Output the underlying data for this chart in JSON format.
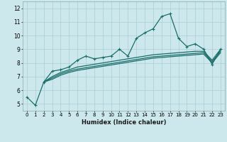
{
  "xlabel": "Humidex (Indice chaleur)",
  "bg_color": "#cde8ec",
  "grid_color": "#aacdd4",
  "line_color": "#1a6e6a",
  "xlim": [
    -0.5,
    23.5
  ],
  "ylim": [
    4.5,
    12.5
  ],
  "yticks": [
    5,
    6,
    7,
    8,
    9,
    10,
    11,
    12
  ],
  "xticks": [
    0,
    1,
    2,
    3,
    4,
    5,
    6,
    7,
    8,
    9,
    10,
    11,
    12,
    13,
    14,
    15,
    16,
    17,
    18,
    19,
    20,
    21,
    22,
    23
  ],
  "series1_x": [
    0,
    1,
    2,
    3,
    4,
    5,
    6,
    7,
    8,
    9,
    10,
    11,
    12,
    13,
    14,
    15,
    16,
    17,
    18,
    19,
    20,
    21,
    22,
    23
  ],
  "series1_y": [
    5.5,
    4.9,
    6.6,
    7.4,
    7.5,
    7.7,
    8.2,
    8.5,
    8.3,
    8.4,
    8.5,
    9.0,
    8.5,
    9.8,
    10.2,
    10.5,
    11.4,
    11.6,
    9.8,
    9.2,
    9.4,
    9.0,
    7.9,
    9.0
  ],
  "series2_x": [
    2,
    3,
    4,
    5,
    6,
    7,
    8,
    9,
    10,
    11,
    12,
    13,
    14,
    15,
    16,
    17,
    18,
    19,
    20,
    21,
    22,
    23
  ],
  "series2_y": [
    6.6,
    7.0,
    7.3,
    7.5,
    7.7,
    7.8,
    7.9,
    8.0,
    8.1,
    8.2,
    8.3,
    8.4,
    8.5,
    8.6,
    8.65,
    8.7,
    8.75,
    8.8,
    8.85,
    8.85,
    8.2,
    9.0
  ],
  "series3_x": [
    2,
    3,
    4,
    5,
    6,
    7,
    8,
    9,
    10,
    11,
    12,
    13,
    14,
    15,
    16,
    17,
    18,
    19,
    20,
    21,
    22,
    23
  ],
  "series3_y": [
    6.6,
    6.9,
    7.2,
    7.4,
    7.55,
    7.65,
    7.75,
    7.85,
    7.95,
    8.05,
    8.15,
    8.25,
    8.35,
    8.45,
    8.5,
    8.55,
    8.6,
    8.65,
    8.7,
    8.75,
    8.1,
    8.85
  ],
  "series4_x": [
    2,
    3,
    4,
    5,
    6,
    7,
    8,
    9,
    10,
    11,
    12,
    13,
    14,
    15,
    16,
    17,
    18,
    19,
    20,
    21,
    22,
    23
  ],
  "series4_y": [
    6.6,
    6.8,
    7.1,
    7.3,
    7.45,
    7.55,
    7.65,
    7.75,
    7.85,
    7.95,
    8.05,
    8.15,
    8.25,
    8.35,
    8.4,
    8.45,
    8.5,
    8.55,
    8.6,
    8.65,
    8.0,
    8.75
  ]
}
